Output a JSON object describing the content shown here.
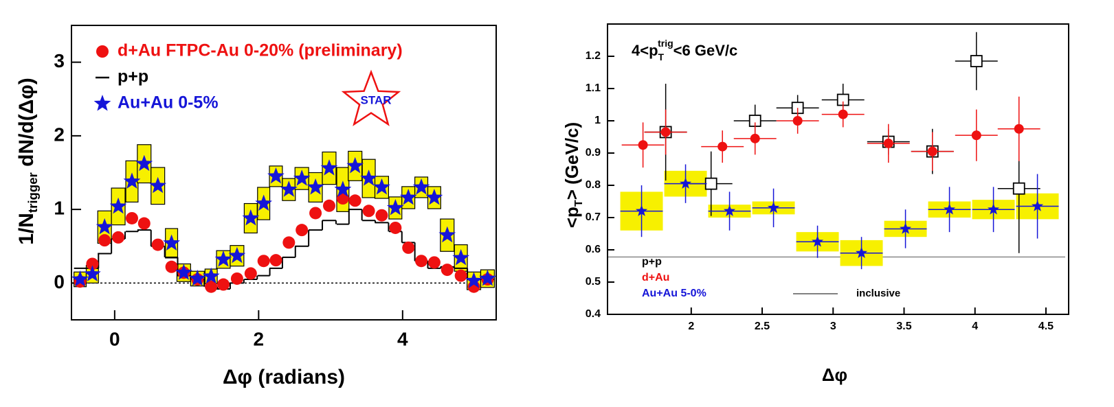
{
  "chart_data": [
    {
      "type": "scatter",
      "x_label": "Δφ (radians)",
      "y_label": [
        "1/N",
        "trigger",
        " dN/d(Δφ)"
      ],
      "annotation": "STAR",
      "xlim": [
        -0.6,
        5.3
      ],
      "xticks": [
        0,
        2,
        4
      ],
      "ylim": [
        -0.5,
        3.5
      ],
      "yticks": [
        0,
        1,
        2,
        3
      ],
      "grid": false,
      "legend_position": "upper left",
      "series": [
        {
          "name": "d+Au FTPC-Au 0-20% (preliminary)",
          "color": "#ee1111",
          "marker": "circle",
          "x": [
            -0.48,
            -0.31,
            -0.14,
            0.05,
            0.24,
            0.41,
            0.6,
            0.79,
            0.96,
            1.15,
            1.34,
            1.51,
            1.7,
            1.89,
            2.07,
            2.24,
            2.42,
            2.6,
            2.79,
            2.98,
            3.17,
            3.34,
            3.53,
            3.71,
            3.9,
            4.08,
            4.26,
            4.44,
            4.62,
            4.81,
            4.99,
            5.18
          ],
          "values": [
            0.02,
            0.26,
            0.58,
            0.62,
            0.88,
            0.81,
            0.52,
            0.22,
            0.14,
            0.05,
            -0.05,
            -0.02,
            0.06,
            0.13,
            0.3,
            0.31,
            0.55,
            0.72,
            0.95,
            1.05,
            1.15,
            1.12,
            0.98,
            0.92,
            0.75,
            0.48,
            0.3,
            0.28,
            0.18,
            0.1,
            -0.05,
            0.05
          ]
        },
        {
          "name": "p+p",
          "color": "#000000",
          "marker": "step",
          "x": [
            -0.48,
            -0.31,
            -0.14,
            0.05,
            0.24,
            0.41,
            0.6,
            0.79,
            0.96,
            1.15,
            1.34,
            1.51,
            1.7,
            1.89,
            2.07,
            2.24,
            2.42,
            2.6,
            2.79,
            2.98,
            3.17,
            3.34,
            3.53,
            3.71,
            3.9,
            4.08,
            4.26,
            4.44,
            4.62,
            4.81,
            4.99,
            5.18
          ],
          "values": [
            0.2,
            0.2,
            0.4,
            0.6,
            0.7,
            0.72,
            0.5,
            0.35,
            0.1,
            0.05,
            -0.05,
            -0.08,
            0.0,
            0.05,
            0.1,
            0.2,
            0.35,
            0.5,
            0.72,
            0.85,
            0.8,
            1.0,
            0.85,
            0.82,
            0.7,
            0.55,
            0.3,
            0.2,
            0.22,
            0.2,
            0.05,
            0.05
          ]
        },
        {
          "name": "Au+Au 0-5%",
          "color": "#1515d8",
          "marker": "star",
          "band_color": "#f7f000",
          "band_edge": "#000000",
          "x": [
            -0.48,
            -0.31,
            -0.14,
            0.05,
            0.24,
            0.41,
            0.6,
            0.79,
            0.96,
            1.15,
            1.34,
            1.51,
            1.7,
            1.89,
            2.07,
            2.24,
            2.42,
            2.6,
            2.79,
            2.98,
            3.17,
            3.34,
            3.53,
            3.71,
            3.9,
            4.08,
            4.26,
            4.44,
            4.62,
            4.81,
            4.99,
            5.18
          ],
          "values": [
            0.05,
            0.12,
            0.76,
            1.04,
            1.38,
            1.62,
            1.32,
            0.54,
            0.14,
            0.06,
            0.09,
            0.32,
            0.37,
            0.88,
            1.08,
            1.45,
            1.27,
            1.42,
            1.3,
            1.56,
            1.27,
            1.59,
            1.42,
            1.3,
            1.02,
            1.16,
            1.3,
            1.16,
            0.65,
            0.34,
            0.03,
            0.06
          ],
          "sys_errors": [
            0.1,
            0.12,
            0.22,
            0.25,
            0.28,
            0.26,
            0.25,
            0.2,
            0.12,
            0.1,
            0.1,
            0.12,
            0.14,
            0.2,
            0.22,
            0.14,
            0.15,
            0.15,
            0.2,
            0.22,
            0.3,
            0.2,
            0.26,
            0.15,
            0.15,
            0.15,
            0.14,
            0.15,
            0.22,
            0.18,
            0.12,
            0.12
          ]
        }
      ]
    },
    {
      "type": "scatter",
      "x_label": "Δφ",
      "y_label": [
        "<p",
        "T",
        "> (GeV/c)"
      ],
      "annotation": [
        "4<p",
        "T",
        "trig",
        "<6 GeV/c"
      ],
      "xlim": [
        1.41,
        4.66
      ],
      "xticks": [
        2,
        2.5,
        3,
        3.5,
        4,
        4.5
      ],
      "ylim": [
        0.4,
        1.3
      ],
      "yticks": [
        0.4,
        0.5,
        0.6,
        0.7,
        0.8,
        0.9,
        1,
        1.1,
        1.2
      ],
      "grid": false,
      "legend_position": "lower left",
      "inclusive": {
        "label": "inclusive",
        "value": 0.578,
        "color": "#555555"
      },
      "series": [
        {
          "name": "p+p",
          "color": "#000000",
          "marker": "square",
          "xerr": 0.15,
          "x": [
            1.82,
            2.14,
            2.45,
            2.75,
            3.07,
            3.39,
            3.7,
            4.01,
            4.31
          ],
          "values": [
            0.965,
            0.805,
            1.0,
            1.04,
            1.065,
            0.935,
            0.905,
            1.185,
            0.79
          ],
          "errors": [
            0.15,
            0.1,
            0.05,
            0.04,
            0.05,
            0.04,
            0.07,
            0.09,
            0.2
          ]
        },
        {
          "name": "d+Au",
          "color": "#ee1111",
          "marker": "circle",
          "xerr": 0.15,
          "x": [
            1.66,
            1.82,
            2.22,
            2.45,
            2.75,
            3.07,
            3.39,
            3.7,
            4.01,
            4.31
          ],
          "values": [
            0.925,
            0.965,
            0.92,
            0.945,
            1.0,
            1.02,
            0.93,
            0.905,
            0.955,
            0.975
          ],
          "errors": [
            0.07,
            0.07,
            0.05,
            0.05,
            0.04,
            0.04,
            0.06,
            0.06,
            0.08,
            0.1
          ]
        },
        {
          "name": "Au+Au 5-0%",
          "color": "#1515d8",
          "marker": "star",
          "band_color": "#f7f000",
          "xerr": 0.15,
          "x": [
            1.65,
            1.96,
            2.27,
            2.58,
            2.89,
            3.2,
            3.51,
            3.82,
            4.13,
            4.44
          ],
          "values": [
            0.72,
            0.805,
            0.72,
            0.73,
            0.625,
            0.59,
            0.665,
            0.725,
            0.725,
            0.735
          ],
          "errors": [
            0.08,
            0.06,
            0.06,
            0.06,
            0.05,
            0.05,
            0.06,
            0.07,
            0.07,
            0.1
          ],
          "sys_errors": [
            0.06,
            0.04,
            0.02,
            0.02,
            0.03,
            0.04,
            0.025,
            0.025,
            0.03,
            0.04
          ]
        }
      ]
    }
  ]
}
